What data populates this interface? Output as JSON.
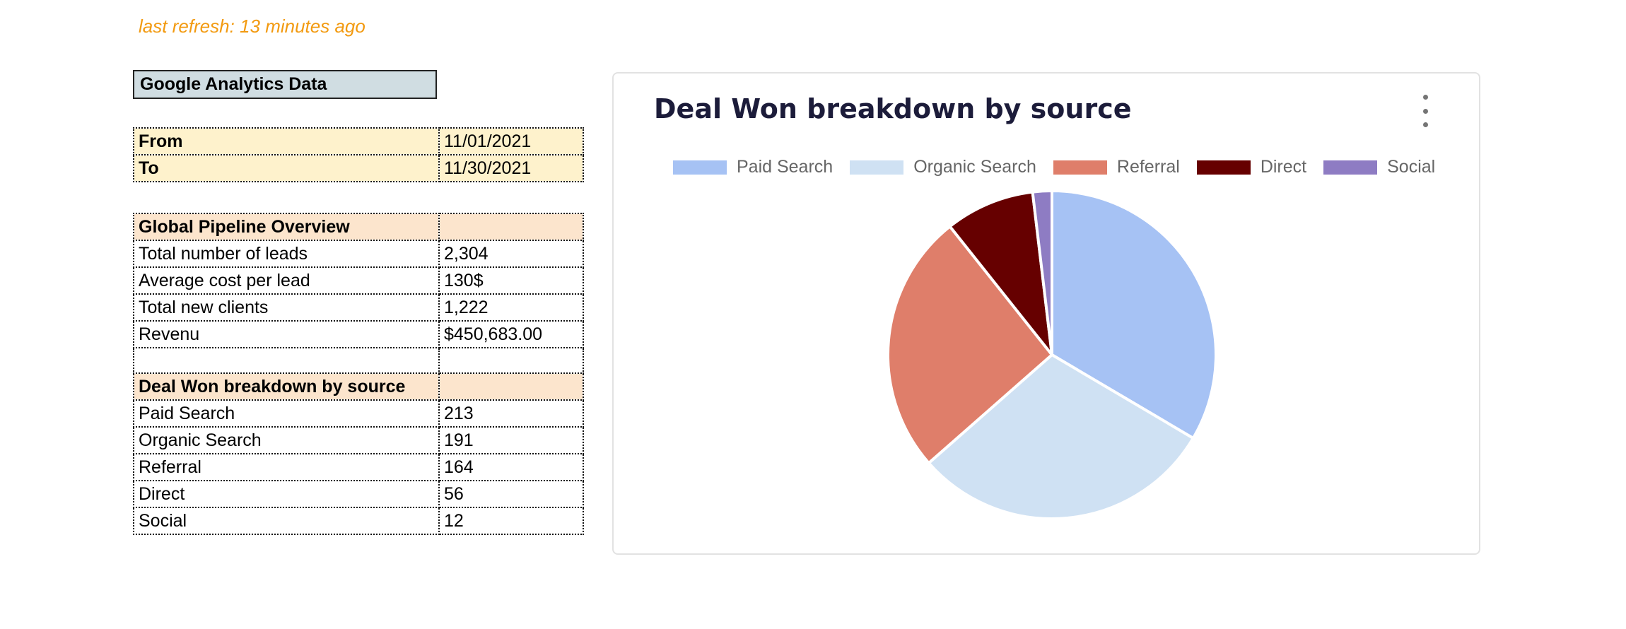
{
  "refresh_text": "last refresh: 13 minutes ago",
  "sheet": {
    "title": "Google Analytics Data",
    "dates": [
      {
        "label": "From",
        "value": "11/01/2021"
      },
      {
        "label": "To",
        "value": "11/30/2021"
      }
    ],
    "pipeline_header": "Global Pipeline Overview",
    "pipeline_rows": [
      {
        "label": "Total number of leads",
        "value": "2,304"
      },
      {
        "label": "Average cost per lead",
        "value": "130$"
      },
      {
        "label": "Total new clients",
        "value": "1,222"
      },
      {
        "label": "Revenu",
        "value": "$450,683.00"
      }
    ],
    "breakdown_header": "Deal Won breakdown by source",
    "breakdown_rows": [
      {
        "label": "Paid Search",
        "value": "213"
      },
      {
        "label": "Organic Search",
        "value": "191"
      },
      {
        "label": "Referral",
        "value": "164"
      },
      {
        "label": "Direct",
        "value": "56"
      },
      {
        "label": "Social",
        "value": "12"
      }
    ]
  },
  "chart_data": {
    "type": "pie",
    "title": "Deal Won breakdown by source",
    "categories": [
      "Paid Search",
      "Organic Search",
      "Referral",
      "Direct",
      "Social"
    ],
    "values": [
      213,
      191,
      164,
      56,
      12
    ],
    "colors": [
      "#a6c2f4",
      "#cfe1f3",
      "#df7e6a",
      "#660000",
      "#8e7cc3"
    ],
    "legend": "top"
  }
}
